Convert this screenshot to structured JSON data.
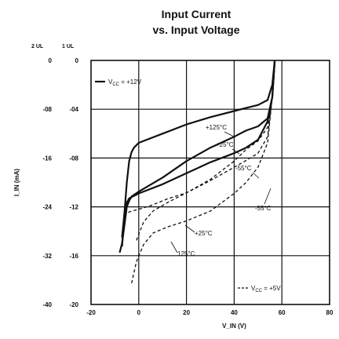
{
  "chart_data": {
    "type": "line",
    "title": "Input Current",
    "subtitle": "vs. Input Voltage",
    "xlabel": "V_IN (V)",
    "ylabel": "I_IN (mA)",
    "xlim": [
      -20,
      80
    ],
    "ylim": [
      -40,
      0
    ],
    "x_ticks": [
      "-20",
      "0",
      "20",
      "40",
      "60",
      "80"
    ],
    "y_ticks_left": [
      "0",
      "-08",
      "-16",
      "-24",
      "-32",
      "-40"
    ],
    "y_ticks_right": [
      "0",
      "-04",
      "-08",
      "-12",
      "-16",
      "-20"
    ],
    "y_header_left": "2 UL",
    "y_header_right": "1 UL",
    "grid": true,
    "legend_solid": {
      "prefix": "V",
      "sub": "CC",
      "suffix": " = +12V"
    },
    "legend_dashed": {
      "prefix": "V",
      "sub": "CC",
      "suffix": " = +5V"
    },
    "series": [
      {
        "name": "+125°C",
        "style": "solid",
        "x": [
          -7,
          -6,
          -5,
          -4,
          -3,
          -2,
          0,
          10,
          20,
          30,
          40,
          45,
          50,
          54,
          56,
          57
        ],
        "y": [
          -30.5,
          -25,
          -20,
          -16.5,
          -15,
          -14.3,
          -13.5,
          -12,
          -10.5,
          -9.3,
          -8.3,
          -7.8,
          -7.3,
          -6.5,
          -4,
          0
        ]
      },
      {
        "name": "+25°C",
        "style": "solid",
        "x": [
          -8,
          -7,
          -6,
          -5,
          -4,
          -3,
          0,
          10,
          20,
          30,
          40,
          45,
          50,
          54,
          56,
          57
        ],
        "y": [
          -31.5,
          -30,
          -27,
          -24,
          -23,
          -22.3,
          -21.5,
          -19.2,
          -16.5,
          -14.3,
          -12.5,
          -11.5,
          -10.8,
          -9.5,
          -6,
          0
        ]
      },
      {
        "name": "-55°C",
        "style": "solid",
        "x": [
          -7,
          -6,
          -5,
          -4,
          -2,
          0,
          10,
          20,
          30,
          40,
          45,
          50,
          54,
          56,
          57
        ],
        "y": [
          -29,
          -25,
          -23.3,
          -22.6,
          -22.2,
          -21.8,
          -20.3,
          -18.5,
          -16.7,
          -15.2,
          -14.3,
          -13,
          -10,
          -6,
          0
        ]
      },
      {
        "name": "+125°C",
        "style": "dashed",
        "x": [
          -1,
          2,
          6,
          12,
          20,
          30,
          40,
          45,
          50,
          54,
          56,
          57
        ],
        "y": [
          -29.5,
          -26.5,
          -24.7,
          -23.3,
          -21.7,
          -19.7,
          -17.5,
          -16.4,
          -15.2,
          -12.5,
          -6,
          0
        ]
      },
      {
        "name": "+25°C",
        "style": "dashed",
        "x": [
          -3,
          -1,
          2,
          6,
          12,
          20,
          30,
          40,
          45,
          50,
          54,
          56,
          57
        ],
        "y": [
          -36.5,
          -33,
          -30.2,
          -28.3,
          -27.3,
          -26.3,
          -24.7,
          -21.8,
          -20,
          -17.5,
          -13.5,
          -6,
          0
        ]
      },
      {
        "name": "-55°C",
        "style": "dashed",
        "x": [
          -6,
          -5,
          -3,
          0,
          5,
          12,
          20,
          30,
          40,
          45,
          50,
          54,
          56,
          57
        ],
        "y": [
          -25.5,
          -25,
          -24.7,
          -24.4,
          -23.8,
          -22.7,
          -21.7,
          -19.5,
          -16.5,
          -14.6,
          -13.2,
          -11,
          -6,
          0
        ]
      }
    ],
    "annotations": [
      "+125°C",
      "+25°C",
      "-55°C",
      "-55°C",
      "+25°C",
      "125°C"
    ]
  }
}
